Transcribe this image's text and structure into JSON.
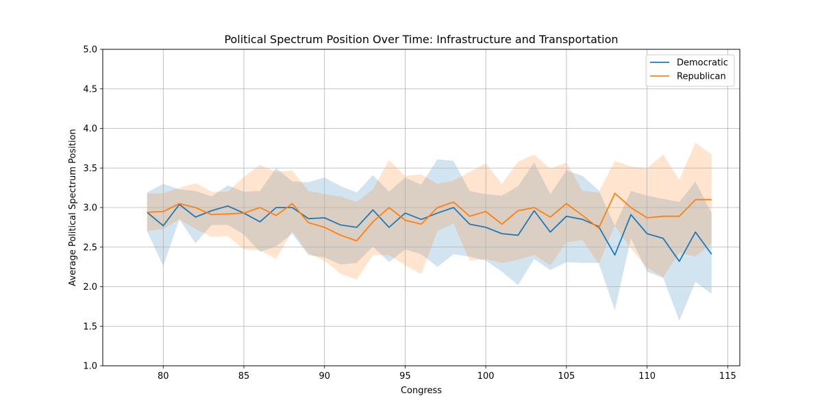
{
  "chart_data": {
    "type": "line",
    "title": "Political Spectrum Position Over Time: Infrastructure and Transportation",
    "xlabel": "Congress",
    "ylabel": "Average Political Spectrum Position",
    "xlim": [
      76.25,
      115.75
    ],
    "ylim": [
      1.0,
      5.0
    ],
    "xticks": [
      80,
      85,
      90,
      95,
      100,
      105,
      110,
      115
    ],
    "yticks": [
      1.0,
      1.5,
      2.0,
      2.5,
      3.0,
      3.5,
      4.0,
      4.5,
      5.0
    ],
    "xtick_labels": [
      "80",
      "85",
      "90",
      "95",
      "100",
      "105",
      "110",
      "115"
    ],
    "ytick_labels": [
      "1.0",
      "1.5",
      "2.0",
      "2.5",
      "3.0",
      "3.5",
      "4.0",
      "4.5",
      "5.0"
    ],
    "grid": true,
    "legend_position": "top-right",
    "x": [
      79,
      80,
      81,
      82,
      83,
      84,
      85,
      86,
      87,
      88,
      89,
      90,
      91,
      92,
      93,
      94,
      95,
      96,
      97,
      98,
      99,
      100,
      101,
      102,
      103,
      104,
      105,
      106,
      107,
      108,
      109,
      110,
      111,
      112,
      113,
      114
    ],
    "series": [
      {
        "name": "Democratic",
        "color": "#1f77b4",
        "values": [
          2.94,
          2.77,
          3.04,
          2.88,
          2.96,
          3.02,
          2.93,
          2.82,
          3.0,
          3.0,
          2.86,
          2.87,
          2.78,
          2.75,
          2.97,
          2.75,
          2.93,
          2.85,
          2.93,
          3.0,
          2.79,
          2.75,
          2.67,
          2.65,
          2.96,
          2.69,
          2.89,
          2.85,
          2.76,
          2.4,
          2.91,
          2.67,
          2.61,
          2.32,
          2.69,
          2.41
        ],
        "lower": [
          2.7,
          2.26,
          2.85,
          2.55,
          2.78,
          2.78,
          2.66,
          2.44,
          2.51,
          2.67,
          2.4,
          2.37,
          2.28,
          2.3,
          2.51,
          2.31,
          2.47,
          2.41,
          2.25,
          2.41,
          2.38,
          2.33,
          2.19,
          2.02,
          2.35,
          2.21,
          2.31,
          2.3,
          2.3,
          1.7,
          2.61,
          2.19,
          2.11,
          1.57,
          2.06,
          1.91
        ],
        "upper": [
          3.19,
          3.3,
          3.23,
          3.21,
          3.14,
          3.28,
          3.2,
          3.21,
          3.5,
          3.33,
          3.32,
          3.38,
          3.27,
          3.19,
          3.41,
          3.2,
          3.38,
          3.29,
          3.61,
          3.59,
          3.21,
          3.17,
          3.15,
          3.27,
          3.57,
          3.17,
          3.47,
          3.4,
          3.22,
          2.77,
          3.21,
          3.15,
          3.11,
          3.07,
          3.33,
          2.93
        ]
      },
      {
        "name": "Republican",
        "color": "#ff7f0e",
        "values": [
          2.94,
          2.95,
          3.05,
          3.0,
          2.91,
          2.92,
          2.93,
          3.0,
          2.9,
          3.05,
          2.81,
          2.75,
          2.65,
          2.58,
          2.82,
          3.0,
          2.84,
          2.79,
          3.0,
          3.07,
          2.89,
          2.95,
          2.79,
          2.96,
          3.0,
          2.88,
          3.05,
          2.9,
          2.74,
          3.18,
          3.0,
          2.87,
          2.89,
          2.89,
          3.1,
          3.1
        ],
        "lower": [
          2.7,
          2.73,
          2.85,
          2.73,
          2.63,
          2.64,
          2.47,
          2.46,
          2.35,
          2.7,
          2.42,
          2.33,
          2.16,
          2.09,
          2.4,
          2.4,
          2.27,
          2.16,
          2.7,
          2.8,
          2.33,
          2.35,
          2.3,
          2.34,
          2.4,
          2.27,
          2.56,
          2.59,
          2.29,
          2.77,
          2.48,
          2.24,
          2.12,
          2.43,
          2.38,
          2.54
        ],
        "upper": [
          3.18,
          3.18,
          3.25,
          3.31,
          3.2,
          3.2,
          3.39,
          3.54,
          3.45,
          3.47,
          3.21,
          3.17,
          3.14,
          3.07,
          3.23,
          3.6,
          3.4,
          3.42,
          3.3,
          3.34,
          3.45,
          3.56,
          3.3,
          3.58,
          3.67,
          3.49,
          3.57,
          3.21,
          3.19,
          3.59,
          3.52,
          3.5,
          3.67,
          3.35,
          3.82,
          3.67
        ]
      }
    ]
  }
}
